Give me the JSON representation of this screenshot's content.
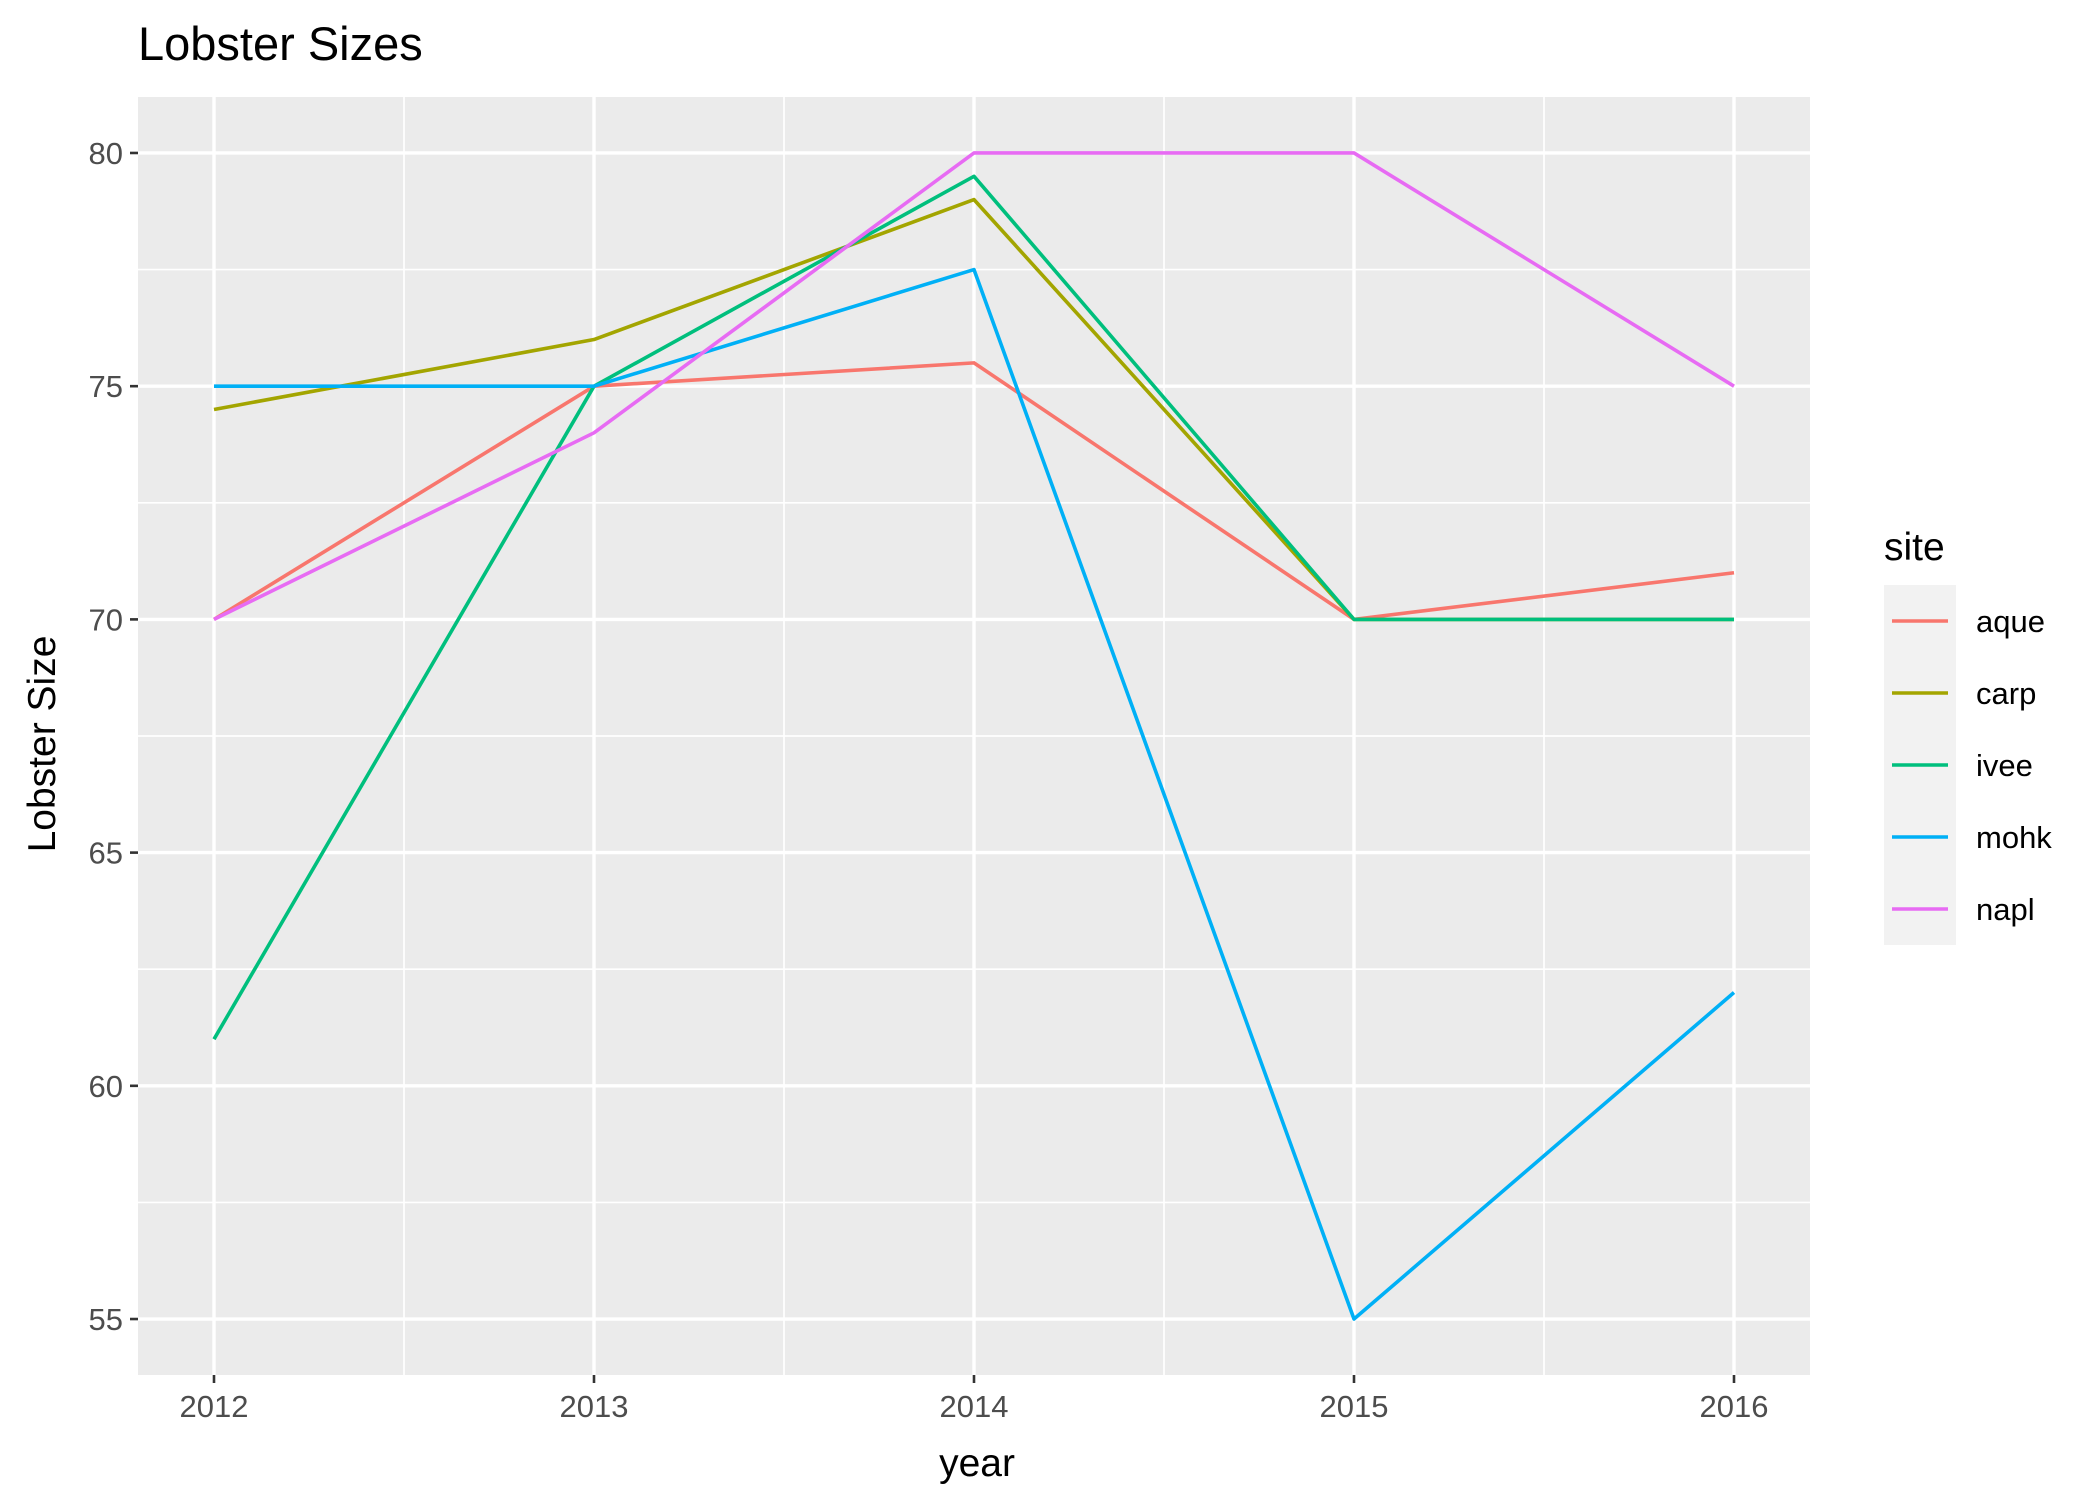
{
  "chart_data": {
    "type": "line",
    "title": "Lobster Sizes",
    "xlabel": "year",
    "ylabel": "Lobster Size",
    "x": [
      2012,
      2013,
      2014,
      2015,
      2016
    ],
    "x_tick_labels": [
      "2012",
      "2013",
      "2014",
      "2015",
      "2016"
    ],
    "xlim": [
      2011.8,
      2016.2
    ],
    "ylim": [
      53.8,
      81.2
    ],
    "y_ticks": [
      55,
      60,
      65,
      70,
      75,
      80
    ],
    "y_tick_labels": [
      "55",
      "60",
      "65",
      "70",
      "75",
      "80"
    ],
    "grid": true,
    "legend": {
      "title": "site",
      "placement": "right"
    },
    "series": [
      {
        "name": "aque",
        "color": "#F8766D",
        "values": [
          70,
          75,
          75.5,
          70,
          71
        ]
      },
      {
        "name": "carp",
        "color": "#A3A500",
        "values": [
          74.5,
          76,
          79,
          70,
          70
        ]
      },
      {
        "name": "ivee",
        "color": "#00BF7D",
        "values": [
          61,
          75,
          79.5,
          70,
          70
        ]
      },
      {
        "name": "mohk",
        "color": "#00B0F6",
        "values": [
          75,
          75,
          77.5,
          55,
          62
        ]
      },
      {
        "name": "napl",
        "color": "#E76BF3",
        "values": [
          70,
          74,
          80,
          80,
          75
        ]
      }
    ]
  }
}
